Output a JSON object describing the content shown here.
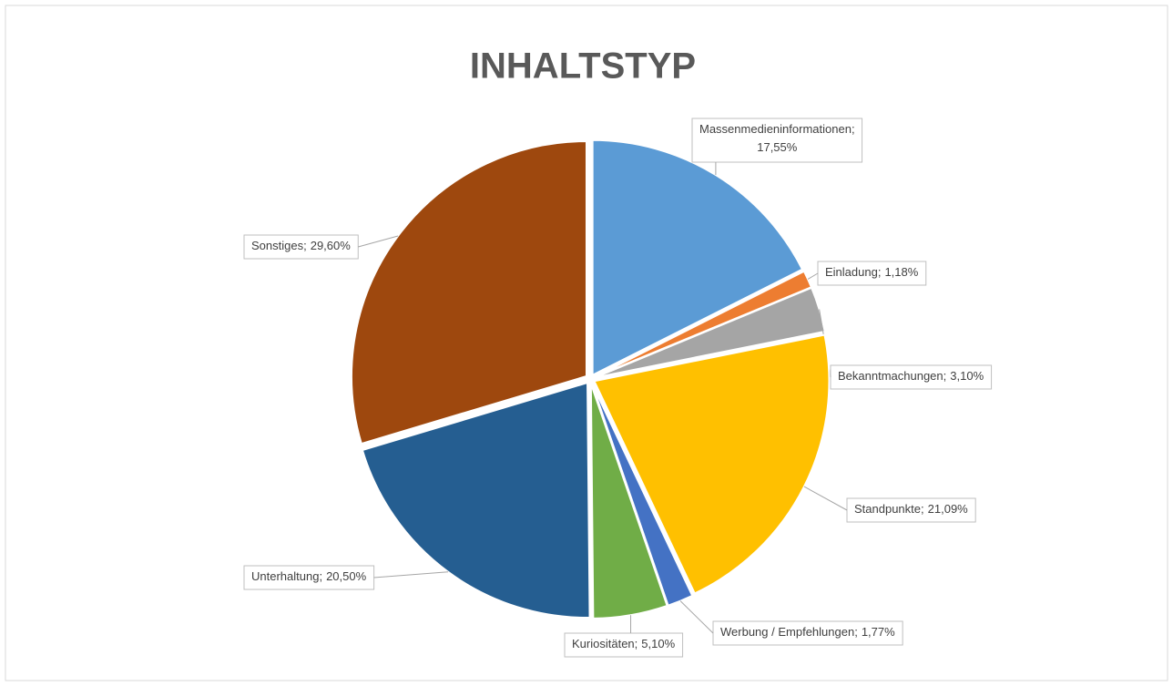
{
  "chart_data": {
    "type": "pie",
    "title": "INHALTSTYP",
    "categories": [
      "Massenmedieninformationen",
      "Einladung",
      "Bekanntmachungen",
      "Standpunkte",
      "Werbung / Empfehlungen",
      "Kuriositäten",
      "Unterhaltung",
      "Sonstiges"
    ],
    "values": [
      17.55,
      1.18,
      3.1,
      21.09,
      1.77,
      5.1,
      20.5,
      29.6
    ],
    "value_labels": [
      "17,55%",
      "1,18%",
      "3,10%",
      "21,09%",
      "1,77%",
      "5,10%",
      "20,50%",
      "29,60%"
    ],
    "label_separator": ";",
    "colors": [
      "#5b9bd5",
      "#ed7d31",
      "#a5a5a5",
      "#ffc000",
      "#4472c4",
      "#70ad47",
      "#255e91",
      "#9e480e"
    ]
  }
}
